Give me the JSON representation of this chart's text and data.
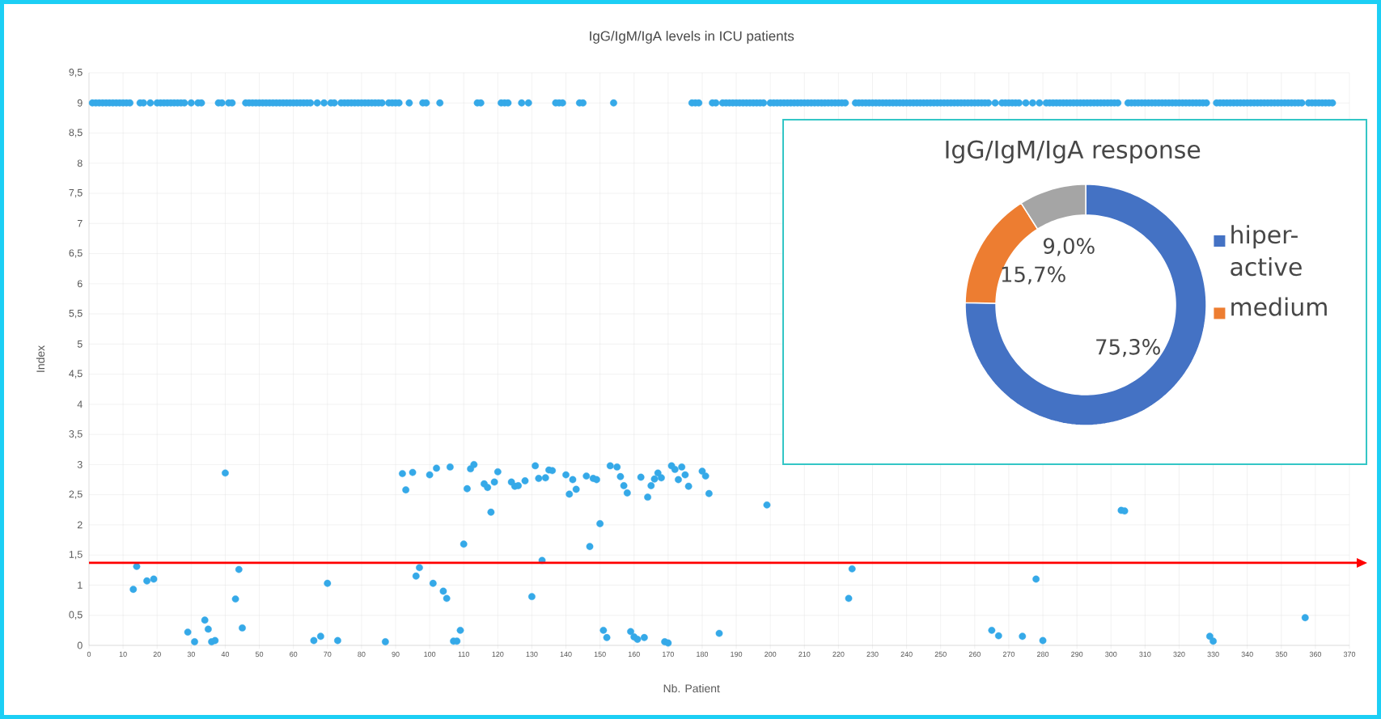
{
  "chart_data": [
    {
      "type": "scatter",
      "title": "IgG/IgM/IgA levels in ICU patients",
      "xlabel": "Nb. Patient",
      "ylabel": "Index",
      "marker": "circle",
      "grid": true,
      "xlim": [
        0,
        370
      ],
      "ylim": [
        0,
        9.5
      ],
      "xticks": [
        0,
        10,
        20,
        30,
        40,
        50,
        60,
        70,
        80,
        90,
        100,
        110,
        120,
        130,
        140,
        150,
        160,
        170,
        180,
        190,
        200,
        210,
        220,
        230,
        240,
        250,
        260,
        270,
        280,
        290,
        300,
        310,
        320,
        330,
        340,
        350,
        360,
        370
      ],
      "yticks": [
        {
          "value": 0,
          "label": "0"
        },
        {
          "value": 0.5,
          "label": "0,5"
        },
        {
          "value": 1,
          "label": "1"
        },
        {
          "value": 1.5,
          "label": "1,5"
        },
        {
          "value": 2,
          "label": "2"
        },
        {
          "value": 2.5,
          "label": "2,5"
        },
        {
          "value": 3,
          "label": "3"
        },
        {
          "value": 3.5,
          "label": "3,5"
        },
        {
          "value": 4,
          "label": "4"
        },
        {
          "value": 4.5,
          "label": "4,5"
        },
        {
          "value": 5,
          "label": "5"
        },
        {
          "value": 5.5,
          "label": "5,5"
        },
        {
          "value": 6,
          "label": "6"
        },
        {
          "value": 6.5,
          "label": "6,5"
        },
        {
          "value": 7,
          "label": "7"
        },
        {
          "value": 7.5,
          "label": "7,5"
        },
        {
          "value": 8,
          "label": "8"
        },
        {
          "value": 8.5,
          "label": "8,5"
        },
        {
          "value": 9,
          "label": "9"
        },
        {
          "value": 9.5,
          "label": "9,5"
        }
      ],
      "ref_lines": [
        {
          "axis": "y",
          "value": 1.37,
          "color": "#ff0000"
        }
      ],
      "series": [
        {
          "color": "#35a9e8",
          "x": [
            1,
            2,
            3,
            4,
            5,
            6,
            7,
            8,
            9,
            10,
            11,
            12,
            15,
            16,
            18,
            20,
            21,
            22,
            23,
            24,
            25,
            26,
            27,
            28,
            30,
            32,
            33,
            38,
            39,
            41,
            42,
            46,
            47,
            48,
            49,
            50,
            51,
            52,
            53,
            54,
            55,
            56,
            57,
            58,
            59,
            60,
            61,
            62,
            63,
            64,
            65,
            67,
            69,
            71,
            72,
            74,
            75,
            76,
            77,
            78,
            79,
            80,
            81,
            82,
            83,
            84,
            85,
            86,
            88,
            89,
            90,
            91,
            94,
            98,
            99,
            103,
            114,
            115,
            121,
            122,
            123,
            127,
            129,
            137,
            138,
            139,
            144,
            145,
            154,
            177,
            178,
            179,
            183,
            184,
            186,
            187,
            188,
            189,
            190,
            191,
            192,
            193,
            194,
            195,
            196,
            197,
            198,
            200,
            201,
            202,
            203,
            204,
            205,
            206,
            207,
            208,
            209,
            210,
            211,
            212,
            213,
            214,
            215,
            216,
            217,
            218,
            219,
            220,
            221,
            222,
            225,
            226,
            227,
            228,
            229,
            230,
            231,
            232,
            233,
            234,
            235,
            236,
            237,
            238,
            239,
            240,
            241,
            242,
            243,
            244,
            245,
            246,
            247,
            248,
            249,
            250,
            251,
            252,
            253,
            254,
            255,
            256,
            257,
            258,
            259,
            260,
            261,
            262,
            263,
            264,
            266,
            268,
            269,
            270,
            271,
            272,
            273,
            275,
            277,
            279,
            281,
            282,
            283,
            284,
            285,
            286,
            287,
            288,
            289,
            290,
            291,
            292,
            293,
            294,
            295,
            296,
            297,
            298,
            299,
            300,
            301,
            302,
            305,
            306,
            307,
            308,
            309,
            310,
            311,
            312,
            313,
            314,
            315,
            316,
            317,
            318,
            319,
            320,
            321,
            322,
            323,
            324,
            325,
            326,
            327,
            328,
            331,
            332,
            333,
            334,
            335,
            336,
            337,
            338,
            339,
            340,
            341,
            342,
            343,
            344,
            345,
            346,
            347,
            348,
            349,
            350,
            351,
            352,
            353,
            354,
            355,
            356,
            358,
            359,
            360,
            361,
            362,
            363,
            364,
            365
          ],
          "values": [
            9,
            9,
            9,
            9,
            9,
            9,
            9,
            9,
            9,
            9,
            9,
            9,
            9,
            9,
            9,
            9,
            9,
            9,
            9,
            9,
            9,
            9,
            9,
            9,
            9,
            9,
            9,
            9,
            9,
            9,
            9,
            9,
            9,
            9,
            9,
            9,
            9,
            9,
            9,
            9,
            9,
            9,
            9,
            9,
            9,
            9,
            9,
            9,
            9,
            9,
            9,
            9,
            9,
            9,
            9,
            9,
            9,
            9,
            9,
            9,
            9,
            9,
            9,
            9,
            9,
            9,
            9,
            9,
            9,
            9,
            9,
            9,
            9,
            9,
            9,
            9,
            9,
            9,
            9,
            9,
            9,
            9,
            9,
            9,
            9,
            9,
            9,
            9,
            9,
            9,
            9,
            9,
            9,
            9,
            9,
            9,
            9,
            9,
            9,
            9,
            9,
            9,
            9,
            9,
            9,
            9,
            9,
            9,
            9,
            9,
            9,
            9,
            9,
            9,
            9,
            9,
            9,
            9,
            9,
            9,
            9,
            9,
            9,
            9,
            9,
            9,
            9,
            9,
            9,
            9,
            9,
            9,
            9,
            9,
            9,
            9,
            9,
            9,
            9,
            9,
            9,
            9,
            9,
            9,
            9,
            9,
            9,
            9,
            9,
            9,
            9,
            9,
            9,
            9,
            9,
            9,
            9,
            9,
            9,
            9,
            9,
            9,
            9,
            9,
            9,
            9,
            9,
            9,
            9,
            9,
            9,
            9,
            9,
            9,
            9,
            9,
            9,
            9,
            9,
            9,
            9,
            9,
            9,
            9,
            9,
            9,
            9,
            9,
            9,
            9,
            9,
            9,
            9,
            9,
            9,
            9,
            9,
            9,
            9,
            9,
            9,
            9,
            9,
            9,
            9,
            9,
            9,
            9,
            9,
            9,
            9,
            9,
            9,
            9,
            9,
            9,
            9,
            9,
            9,
            9,
            9,
            9,
            9,
            9,
            9,
            9,
            9,
            9,
            9,
            9,
            9,
            9,
            9,
            9,
            9,
            9,
            9,
            9,
            9,
            9,
            9,
            9,
            9,
            9,
            9,
            9,
            9,
            9,
            9,
            9,
            9,
            9,
            9,
            9,
            9,
            9,
            9,
            9,
            9,
            9
          ]
        },
        {
          "color": "#35a9e8",
          "x": [
            13,
            14,
            17,
            19,
            29,
            31,
            34,
            35,
            36,
            37,
            40,
            43,
            44,
            45,
            66,
            68,
            70,
            73,
            87,
            92,
            93,
            95,
            96,
            97,
            100,
            101,
            102,
            104,
            105,
            106,
            107,
            108,
            109,
            110,
            111,
            112,
            113,
            116,
            117,
            118,
            119,
            120,
            124,
            125,
            126,
            128,
            130,
            131,
            132,
            133,
            134,
            135,
            136,
            140,
            141,
            142,
            143,
            146,
            147,
            148,
            149,
            150,
            151,
            152,
            153,
            155,
            156,
            157,
            158,
            159,
            160,
            161,
            162,
            163,
            164,
            165,
            166,
            167,
            168,
            169,
            170,
            171,
            172,
            173,
            174,
            175,
            176,
            180,
            181,
            182,
            185,
            199,
            223,
            224,
            265,
            267,
            274,
            278,
            280,
            303,
            304,
            329,
            330,
            357
          ],
          "values": [
            0.93,
            1.31,
            1.07,
            1.1,
            0.22,
            0.06,
            0.42,
            0.27,
            0.06,
            0.08,
            2.86,
            0.77,
            1.26,
            0.29,
            0.08,
            0.15,
            1.03,
            0.08,
            0.06,
            2.85,
            2.58,
            2.87,
            1.15,
            1.29,
            2.83,
            1.03,
            2.94,
            0.9,
            0.78,
            2.96,
            0.07,
            0.07,
            0.25,
            1.68,
            2.6,
            2.93,
            3.0,
            2.68,
            2.62,
            2.21,
            2.71,
            2.88,
            2.71,
            2.64,
            2.65,
            2.73,
            0.81,
            2.98,
            2.77,
            1.41,
            2.78,
            2.91,
            2.9,
            2.83,
            2.51,
            2.75,
            2.59,
            2.81,
            1.64,
            2.77,
            2.75,
            2.02,
            0.25,
            0.13,
            2.98,
            2.96,
            2.8,
            2.65,
            2.53,
            0.23,
            0.14,
            0.1,
            2.79,
            0.13,
            2.46,
            2.65,
            2.76,
            2.86,
            2.78,
            0.06,
            0.04,
            2.98,
            2.92,
            2.75,
            2.96,
            2.83,
            2.64,
            2.89,
            2.81,
            2.52,
            0.2,
            2.33,
            0.78,
            1.27,
            0.25,
            0.16,
            0.15,
            1.1,
            0.08,
            2.24,
            2.23,
            0.15,
            0.07,
            0.46
          ]
        }
      ]
    },
    {
      "type": "donut",
      "title": "IgG/IgM/IgA response",
      "legend": "right",
      "categories": [
        "hiper-active",
        "medium",
        null
      ],
      "values": [
        75.3,
        15.7,
        9.0
      ],
      "colors": [
        "#4472c4",
        "#ed7d31",
        "#a5a5a5"
      ],
      "value_labels": [
        "75,3%",
        "15,7%",
        "9,0%"
      ]
    }
  ]
}
